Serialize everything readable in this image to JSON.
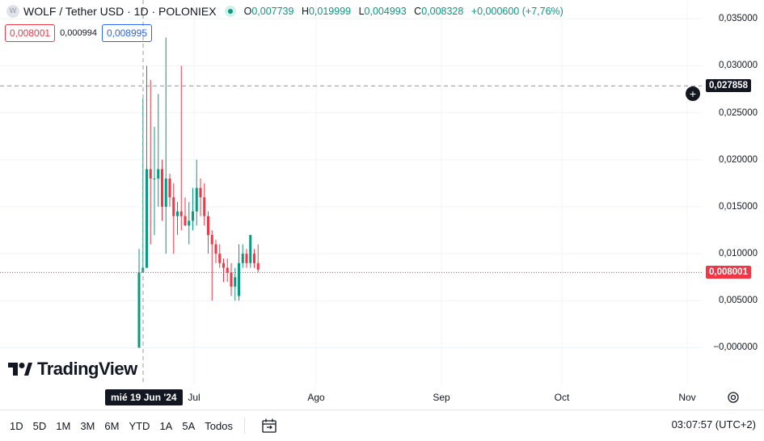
{
  "header": {
    "symbol_icon": "W",
    "title": "WOLF / Tether USD · 1D · POLONIEX",
    "ohlc": {
      "o_key": "O",
      "o": "0,007739",
      "h_key": "H",
      "h": "0,019999",
      "l_key": "L",
      "l": "0,004993",
      "c_key": "C",
      "c": "0,008328",
      "change": "+0,000600 (+7,76%)"
    },
    "sell_price": "0,008001",
    "spread": "0,000994",
    "buy_price": "0,008995"
  },
  "logo_text": "TradingView",
  "price_axis": {
    "ticks": [
      "0,035000",
      "0,030000",
      "0,025000",
      "0,020000",
      "0,015000",
      "0,010000",
      "0,005000",
      "−0,000000"
    ],
    "crosshair_price": "0,027858",
    "last_price": "0,008001"
  },
  "time_axis": {
    "crosshair_date": "mié 19 Jun '24",
    "labels": [
      "Jul",
      "Ago",
      "Sep",
      "Oct",
      "Nov"
    ]
  },
  "timeframes": [
    "1D",
    "5D",
    "1M",
    "3M",
    "6M",
    "YTD",
    "1A",
    "5A",
    "Todos"
  ],
  "clock": "03:07:57 (UTC+2)",
  "colors": {
    "up": "#089981",
    "down": "#f23645",
    "text": "#131722",
    "grid": "#f0f3fa"
  },
  "chart_data": {
    "type": "candlestick",
    "y_range": [
      -0.004,
      0.037
    ],
    "candles": [
      {
        "o": 0.0,
        "h": 0.0105,
        "l": -0.0,
        "c": 0.008
      },
      {
        "o": 0.008,
        "h": 0.0265,
        "l": 0.008,
        "c": 0.0085
      },
      {
        "o": 0.0085,
        "h": 0.03,
        "l": 0.0085,
        "c": 0.019
      },
      {
        "o": 0.019,
        "h": 0.0285,
        "l": 0.011,
        "c": 0.018
      },
      {
        "o": 0.018,
        "h": 0.0235,
        "l": 0.012,
        "c": 0.018
      },
      {
        "o": 0.018,
        "h": 0.027,
        "l": 0.015,
        "c": 0.019
      },
      {
        "o": 0.019,
        "h": 0.02,
        "l": 0.0135,
        "c": 0.015
      },
      {
        "o": 0.015,
        "h": 0.033,
        "l": 0.01,
        "c": 0.018
      },
      {
        "o": 0.018,
        "h": 0.0185,
        "l": 0.015,
        "c": 0.016
      },
      {
        "o": 0.016,
        "h": 0.0175,
        "l": 0.01,
        "c": 0.014
      },
      {
        "o": 0.014,
        "h": 0.0155,
        "l": 0.012,
        "c": 0.0145
      },
      {
        "o": 0.0145,
        "h": 0.03,
        "l": 0.0125,
        "c": 0.014
      },
      {
        "o": 0.014,
        "h": 0.016,
        "l": 0.013,
        "c": 0.013
      },
      {
        "o": 0.013,
        "h": 0.0155,
        "l": 0.011,
        "c": 0.0135
      },
      {
        "o": 0.0135,
        "h": 0.017,
        "l": 0.0125,
        "c": 0.0145
      },
      {
        "o": 0.0145,
        "h": 0.02,
        "l": 0.013,
        "c": 0.017
      },
      {
        "o": 0.017,
        "h": 0.018,
        "l": 0.014,
        "c": 0.016
      },
      {
        "o": 0.016,
        "h": 0.0175,
        "l": 0.013,
        "c": 0.014
      },
      {
        "o": 0.014,
        "h": 0.0145,
        "l": 0.01,
        "c": 0.012
      },
      {
        "o": 0.012,
        "h": 0.0125,
        "l": 0.005,
        "c": 0.011
      },
      {
        "o": 0.011,
        "h": 0.0115,
        "l": 0.009,
        "c": 0.01
      },
      {
        "o": 0.01,
        "h": 0.011,
        "l": 0.0085,
        "c": 0.009
      },
      {
        "o": 0.009,
        "h": 0.0095,
        "l": 0.007,
        "c": 0.0085
      },
      {
        "o": 0.0085,
        "h": 0.0095,
        "l": 0.007,
        "c": 0.008
      },
      {
        "o": 0.008,
        "h": 0.009,
        "l": 0.0055,
        "c": 0.0065
      },
      {
        "o": 0.0065,
        "h": 0.0085,
        "l": 0.005,
        "c": 0.0075
      },
      {
        "o": 0.0055,
        "h": 0.011,
        "l": 0.005,
        "c": 0.009
      },
      {
        "o": 0.009,
        "h": 0.011,
        "l": 0.0085,
        "c": 0.01
      },
      {
        "o": 0.01,
        "h": 0.0105,
        "l": 0.0085,
        "c": 0.009
      },
      {
        "o": 0.009,
        "h": 0.012,
        "l": 0.0085,
        "c": 0.012
      },
      {
        "o": 0.01,
        "h": 0.0105,
        "l": 0.0085,
        "c": 0.009
      },
      {
        "o": 0.009,
        "h": 0.011,
        "l": 0.008,
        "c": 0.0083
      }
    ]
  }
}
